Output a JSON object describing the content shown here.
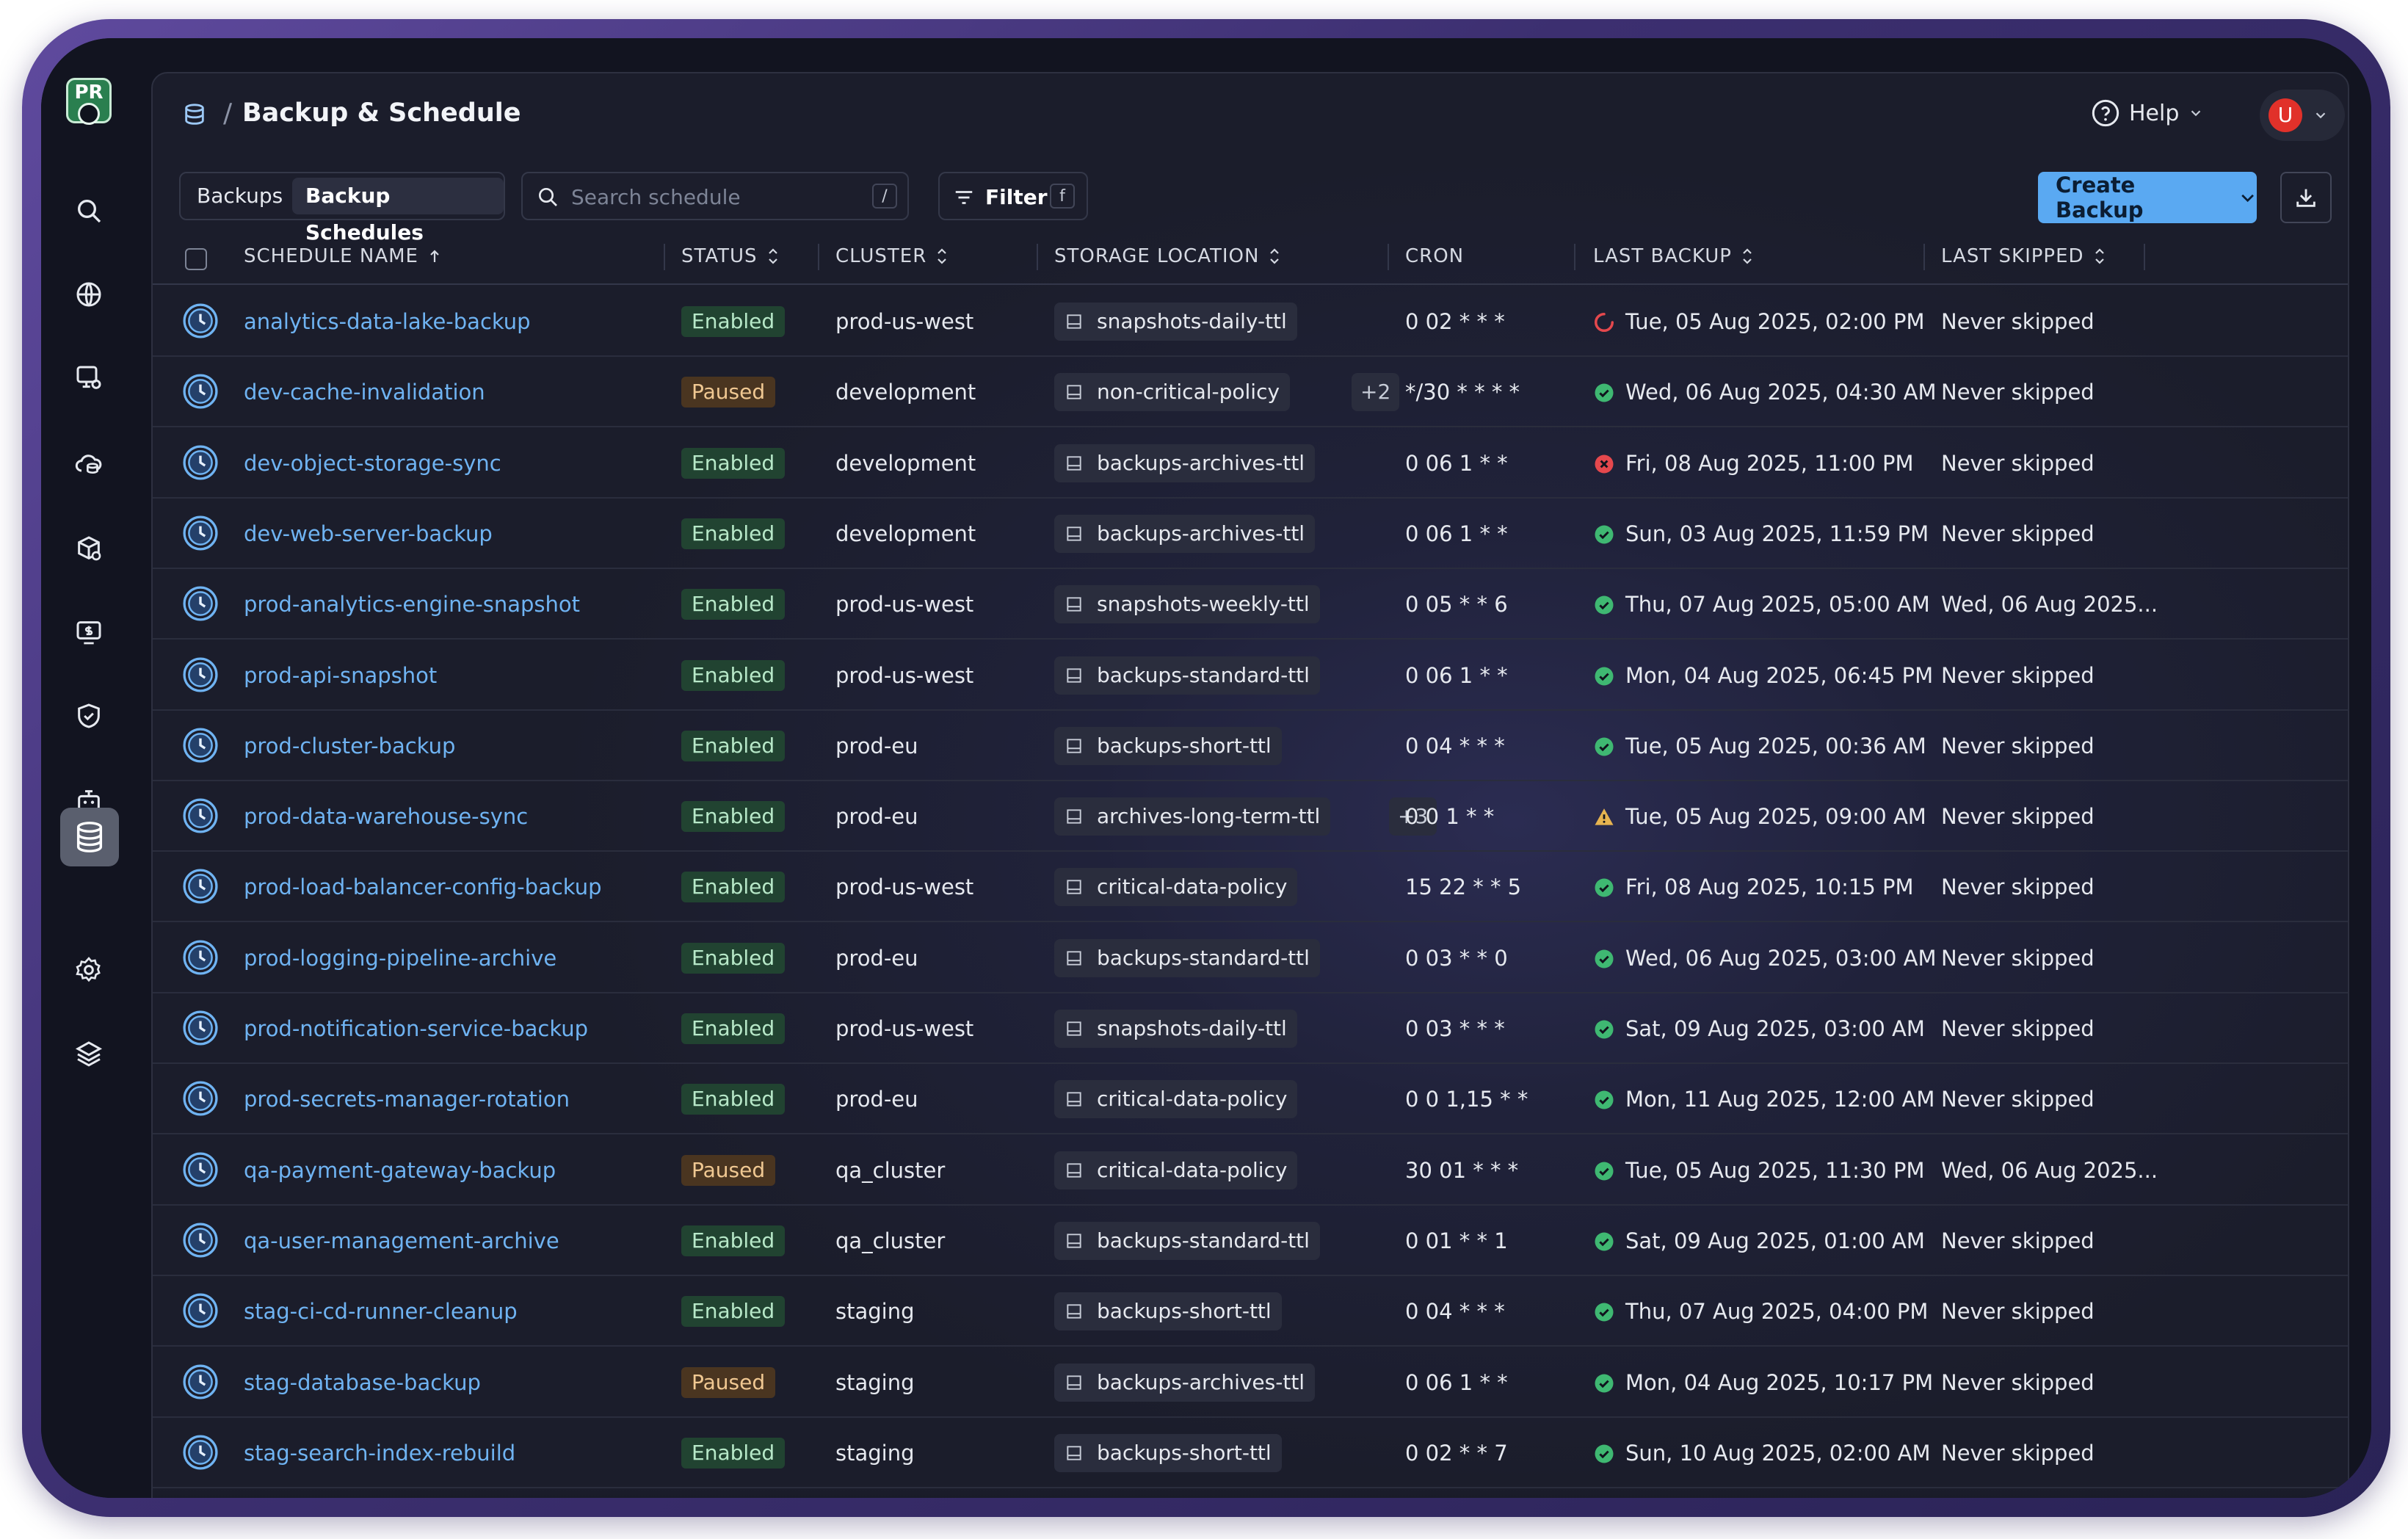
{
  "app": {
    "logo_text": "PR"
  },
  "header": {
    "separator": "/",
    "title": "Backup & Schedule",
    "help_label": "Help",
    "avatar_initial": "U"
  },
  "toolbar": {
    "tabs": [
      {
        "label": "Backups"
      },
      {
        "label": "Backup Schedules",
        "active": true
      }
    ],
    "search": {
      "placeholder": "Search schedule",
      "shortcut": "/"
    },
    "filter": {
      "label": "Filter",
      "shortcut": "f"
    },
    "create_label": "Create Backup"
  },
  "table": {
    "columns": [
      {
        "label": "SCHEDULE NAME",
        "sort": "asc"
      },
      {
        "label": "STATUS",
        "sort": "both"
      },
      {
        "label": "CLUSTER",
        "sort": "both"
      },
      {
        "label": "STORAGE LOCATION",
        "sort": "both"
      },
      {
        "label": "CRON",
        "sort": "none"
      },
      {
        "label": "LAST BACKUP",
        "sort": "both"
      },
      {
        "label": "LAST SKIPPED",
        "sort": "both"
      }
    ],
    "rows": [
      {
        "name": "analytics-data-lake-backup",
        "status": "Enabled",
        "cluster": "prod-us-west",
        "storage": "snapshots-daily-ttl",
        "extra": "",
        "cron": "0 02 * * *",
        "last_status": "running",
        "last_backup": "Tue, 05 Aug 2025, 02:00 PM",
        "last_skipped": "Never skipped"
      },
      {
        "name": "dev-cache-invalidation",
        "status": "Paused",
        "cluster": "development",
        "storage": "non-critical-policy",
        "extra": "+2",
        "cron": "*/30 * * * *",
        "last_status": "success",
        "last_backup": "Wed, 06 Aug 2025, 04:30 AM",
        "last_skipped": "Never skipped"
      },
      {
        "name": "dev-object-storage-sync",
        "status": "Enabled",
        "cluster": "development",
        "storage": "backups-archives-ttl",
        "extra": "",
        "cron": "0 06 1 * *",
        "last_status": "error",
        "last_backup": "Fri, 08 Aug 2025, 11:00 PM",
        "last_skipped": "Never skipped"
      },
      {
        "name": "dev-web-server-backup",
        "status": "Enabled",
        "cluster": "development",
        "storage": "backups-archives-ttl",
        "extra": "",
        "cron": "0 06 1 * *",
        "last_status": "success",
        "last_backup": "Sun, 03 Aug 2025, 11:59 PM",
        "last_skipped": "Never skipped"
      },
      {
        "name": "prod-analytics-engine-snapshot",
        "status": "Enabled",
        "cluster": "prod-us-west",
        "storage": "snapshots-weekly-ttl",
        "extra": "",
        "cron": "0 05 * * 6",
        "last_status": "success",
        "last_backup": "Thu, 07 Aug 2025, 05:00 AM",
        "last_skipped": "Wed, 06 Aug 2025..."
      },
      {
        "name": "prod-api-snapshot",
        "status": "Enabled",
        "cluster": "prod-us-west",
        "storage": "backups-standard-ttl",
        "extra": "",
        "cron": "0 06 1 * *",
        "last_status": "success",
        "last_backup": "Mon, 04 Aug 2025, 06:45 PM",
        "last_skipped": "Never skipped"
      },
      {
        "name": "prod-cluster-backup",
        "status": "Enabled",
        "cluster": "prod-eu",
        "storage": "backups-short-ttl",
        "extra": "",
        "cron": "0 04 * * *",
        "last_status": "success",
        "last_backup": "Tue, 05 Aug 2025, 00:36 AM",
        "last_skipped": "Never skipped"
      },
      {
        "name": "prod-data-warehouse-sync",
        "status": "Enabled",
        "cluster": "prod-eu",
        "storage": "archives-long-term-ttl",
        "extra": "+3",
        "cron": "0 0 1 * *",
        "last_status": "warning",
        "last_backup": "Tue, 05 Aug 2025, 09:00 AM",
        "last_skipped": "Never skipped"
      },
      {
        "name": "prod-load-balancer-config-backup",
        "status": "Enabled",
        "cluster": "prod-us-west",
        "storage": "critical-data-policy",
        "extra": "",
        "cron": "15 22 * * 5",
        "last_status": "success",
        "last_backup": "Fri, 08 Aug 2025, 10:15 PM",
        "last_skipped": "Never skipped"
      },
      {
        "name": "prod-logging-pipeline-archive",
        "status": "Enabled",
        "cluster": "prod-eu",
        "storage": "backups-standard-ttl",
        "extra": "",
        "cron": "0 03 * * 0",
        "last_status": "success",
        "last_backup": "Wed, 06 Aug 2025, 03:00 AM",
        "last_skipped": "Never skipped"
      },
      {
        "name": "prod-notification-service-backup",
        "status": "Enabled",
        "cluster": "prod-us-west",
        "storage": "snapshots-daily-ttl",
        "extra": "",
        "cron": "0 03 * * *",
        "last_status": "success",
        "last_backup": "Sat, 09 Aug 2025, 03:00 AM",
        "last_skipped": "Never skipped"
      },
      {
        "name": "prod-secrets-manager-rotation",
        "status": "Enabled",
        "cluster": "prod-eu",
        "storage": "critical-data-policy",
        "extra": "",
        "cron": "0 0 1,15 * *",
        "last_status": "success",
        "last_backup": "Mon, 11 Aug 2025, 12:00 AM",
        "last_skipped": "Never skipped"
      },
      {
        "name": "qa-payment-gateway-backup",
        "status": "Paused",
        "cluster": "qa_cluster",
        "storage": "critical-data-policy",
        "extra": "",
        "cron": "30 01 * * *",
        "last_status": "success",
        "last_backup": "Tue, 05 Aug 2025, 11:30 PM",
        "last_skipped": "Wed, 06 Aug 2025..."
      },
      {
        "name": "qa-user-management-archive",
        "status": "Enabled",
        "cluster": "qa_cluster",
        "storage": "backups-standard-ttl",
        "extra": "",
        "cron": "0 01 * * 1",
        "last_status": "success",
        "last_backup": "Sat, 09 Aug 2025, 01:00 AM",
        "last_skipped": "Never skipped"
      },
      {
        "name": "stag-ci-cd-runner-cleanup",
        "status": "Enabled",
        "cluster": "staging",
        "storage": "backups-short-ttl",
        "extra": "",
        "cron": "0 04 * * *",
        "last_status": "success",
        "last_backup": "Thu, 07 Aug 2025, 04:00 PM",
        "last_skipped": "Never skipped"
      },
      {
        "name": "stag-database-backup",
        "status": "Paused",
        "cluster": "staging",
        "storage": "backups-archives-ttl",
        "extra": "",
        "cron": "0 06 1 * *",
        "last_status": "success",
        "last_backup": "Mon, 04 Aug 2025, 10:17 PM",
        "last_skipped": "Never skipped"
      },
      {
        "name": "stag-search-index-rebuild",
        "status": "Enabled",
        "cluster": "staging",
        "storage": "backups-short-ttl",
        "extra": "",
        "cron": "0 02 * * 7",
        "last_status": "success",
        "last_backup": "Sun, 10 Aug 2025, 02:00 AM",
        "last_skipped": "Never skipped"
      }
    ]
  },
  "sidebar": {
    "items": [
      {
        "icon": "search-icon"
      },
      {
        "icon": "globe-icon"
      },
      {
        "icon": "server-gear-icon"
      },
      {
        "icon": "cloud-database-icon"
      },
      {
        "icon": "cube-settings-icon"
      },
      {
        "icon": "cost-monitor-icon"
      },
      {
        "icon": "shield-check-icon"
      },
      {
        "icon": "robot-icon"
      },
      {
        "icon": "database-icon",
        "active": true
      },
      {
        "icon": "settings-icon"
      },
      {
        "icon": "layers-icon"
      }
    ]
  },
  "colors": {
    "accent": "#5aa9f2",
    "link": "#6fb3f2",
    "success": "#3fb872",
    "error": "#e5484d",
    "warning": "#e6b450"
  }
}
